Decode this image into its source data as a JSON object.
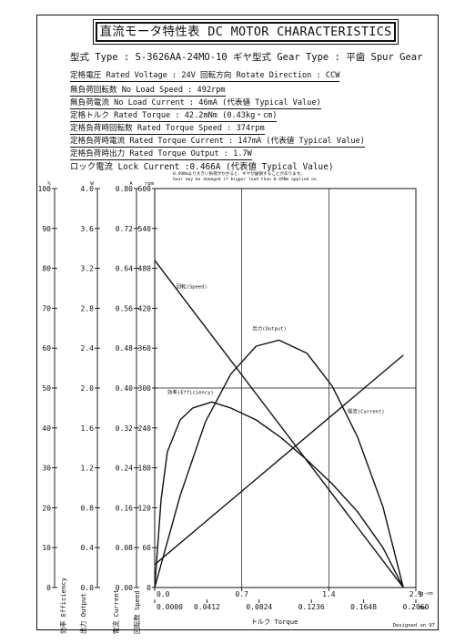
{
  "header": {
    "title": "直流モータ特性表 DC MOTOR CHARACTERISTICS"
  },
  "specs": [
    "型式 Type : S-3626AA-24MO-10   ギヤ型式 Gear Type : 平歯 Spur Gear",
    "定格電圧 Rated Voltage : 24V   回転方向 Rotate Direction : CCW",
    "無負荷回転数 No Load Speed : 492rpm",
    "無負荷電流 No Load Current : 46mA (代表値 Typical Value)",
    "定格トルク Rated Torque : 42.2mNm (0.43kg・cm)",
    "定格負荷時回転数 Rated Torque Speed : 374rpm",
    "定格負荷時電流 Rated Torque Current : 147mA (代表値 Typical Value)",
    "定格負荷時出力 Rated Torque Output : 1.7W",
    "ロック電流 Lock Current :0.466A (代表値 Typical Value)"
  ],
  "notes": [
    "0.49Nmより大きい負荷がかかると、ギヤが破損することがあります。",
    "Gear may be damaged if bigger load than 0.49Nm applied on."
  ],
  "footer": {
    "designed_by": "Designed on 97"
  },
  "chart_data": {
    "type": "line",
    "xlabel": "トルク Torque",
    "x_unit_primary": "kg-cm",
    "x_unit_secondary": "Nm",
    "x_ticks_primary": [
      "0.0",
      "0.7",
      "1.4",
      "2.1"
    ],
    "x_ticks_secondary": [
      "0.0000",
      "0.0412",
      "0.0824",
      "0.1236",
      "0.1648",
      "0.2060"
    ],
    "xlim": [
      0,
      0.206
    ],
    "y_axes": [
      {
        "key": "eff",
        "unit": "%",
        "label": "効率 Efficiency",
        "ticks": [
          "0",
          "10",
          "20",
          "30",
          "40",
          "50",
          "60",
          "70",
          "80",
          "90",
          "100"
        ],
        "ylim": [
          0,
          100
        ]
      },
      {
        "key": "out",
        "unit": "W",
        "label": "出力 Output",
        "ticks": [
          "0.0",
          "0.4",
          "0.8",
          "1.2",
          "1.6",
          "2.0",
          "2.4",
          "2.8",
          "3.2",
          "3.6",
          "4.0"
        ],
        "ylim": [
          0,
          4.0
        ]
      },
      {
        "key": "cur",
        "unit": "A",
        "label": "電流 Current",
        "ticks": [
          "0.00",
          "0.08",
          "0.16",
          "0.24",
          "0.32",
          "0.40",
          "0.48",
          "0.56",
          "0.64",
          "0.72",
          "0.80"
        ],
        "ylim": [
          0,
          0.8
        ]
      },
      {
        "key": "spd",
        "unit": "rpm",
        "label": "回転数 Speed",
        "ticks": [
          "0",
          "60",
          "120",
          "180",
          "240",
          "300",
          "360",
          "420",
          "480",
          "540",
          "600"
        ],
        "ylim": [
          0,
          600
        ]
      }
    ],
    "series": [
      {
        "name": "回転(Speed)",
        "axis": "spd",
        "x": [
          0,
          0.1961
        ],
        "y": [
          492,
          0
        ]
      },
      {
        "name": "電流(Current)",
        "axis": "cur",
        "x": [
          0,
          0.1961
        ],
        "y": [
          0.046,
          0.466
        ]
      },
      {
        "name": "出力(Output)",
        "axis": "out",
        "x": [
          0,
          0.02,
          0.04,
          0.06,
          0.08,
          0.098,
          0.12,
          0.14,
          0.16,
          0.18,
          0.1961
        ],
        "y": [
          0,
          0.92,
          1.66,
          2.14,
          2.42,
          2.48,
          2.35,
          2.02,
          1.51,
          0.81,
          0
        ]
      },
      {
        "name": "効率(Efficiency)",
        "axis": "eff",
        "x": [
          0,
          0.005,
          0.01,
          0.02,
          0.03,
          0.045,
          0.06,
          0.08,
          0.1,
          0.12,
          0.14,
          0.16,
          0.18,
          0.1961
        ],
        "y": [
          0,
          22,
          34,
          42,
          45,
          46.5,
          45,
          42,
          37.5,
          32,
          26,
          19,
          10,
          0
        ]
      }
    ]
  }
}
